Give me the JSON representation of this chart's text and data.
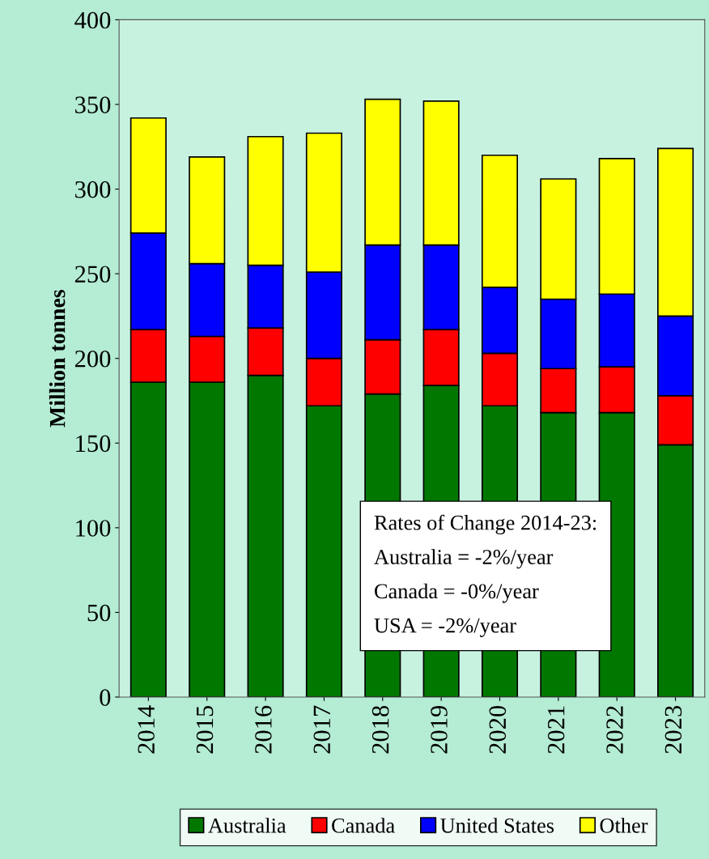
{
  "chart_data": {
    "type": "bar",
    "stacked": true,
    "ylabel": "Million tonnes",
    "categories": [
      "2014",
      "2015",
      "2016",
      "2017",
      "2018",
      "2019",
      "2020",
      "2021",
      "2022",
      "2023"
    ],
    "series": [
      {
        "name": "Australia",
        "color": "#007800",
        "values": [
          186,
          186,
          190,
          172,
          179,
          184,
          172,
          168,
          168,
          149
        ]
      },
      {
        "name": "Canada",
        "color": "#ff0000",
        "values": [
          31,
          27,
          28,
          28,
          32,
          33,
          31,
          26,
          27,
          29
        ]
      },
      {
        "name": "United States",
        "color": "#0000ff",
        "values": [
          57,
          43,
          37,
          51,
          56,
          50,
          39,
          41,
          43,
          47
        ]
      },
      {
        "name": "Other",
        "color": "#ffff00",
        "values": [
          68,
          63,
          76,
          82,
          86,
          85,
          78,
          71,
          80,
          99
        ]
      }
    ],
    "ylim": [
      0,
      400
    ],
    "yticks": [
      0,
      50,
      100,
      150,
      200,
      250,
      300,
      350,
      400
    ],
    "grid": false,
    "legend": "bottom",
    "annotations": [
      "Rates of Change 2014-23:",
      "Australia = -2%/year",
      "Canada = -0%/year",
      "USA = -2%/year"
    ]
  }
}
